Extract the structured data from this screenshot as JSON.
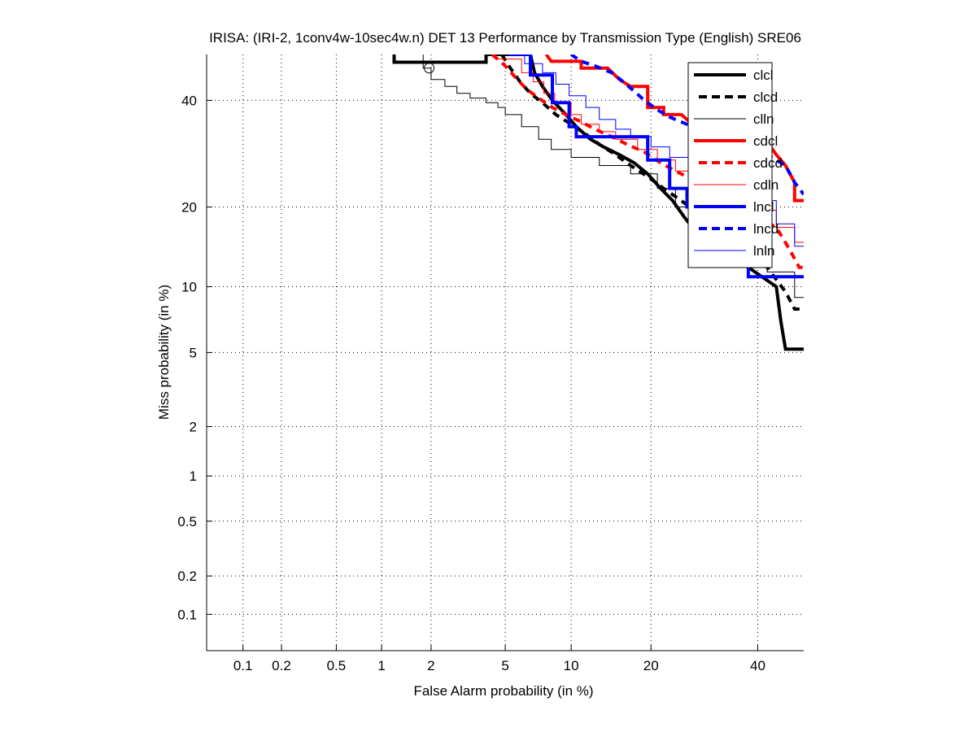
{
  "chart_data": {
    "type": "line",
    "subtype": "DET curve (normal deviate scale)",
    "title": "IRISA: (IRI-2, 1conv4w-10sec4w.n) DET 13 Performance by Transmission Type (English) SRE06",
    "xlabel": "False Alarm probability (in %)",
    "ylabel": "Miss probability (in %)",
    "x_scale": "probit",
    "y_scale": "probit",
    "xlim": [
      0.05,
      50
    ],
    "ylim": [
      0.05,
      50
    ],
    "x_ticks": [
      0.1,
      0.2,
      0.5,
      1,
      2,
      5,
      10,
      20,
      40
    ],
    "x_tick_labels": [
      "0.1",
      "0.2",
      "0.5",
      "1",
      "2",
      "5",
      "10",
      "20",
      "40"
    ],
    "y_ticks": [
      0.1,
      0.2,
      0.5,
      1,
      2,
      5,
      10,
      20,
      40
    ],
    "y_tick_labels": [
      "0.1",
      "0.2",
      "0.5",
      "1",
      "2",
      "5",
      "10",
      "20",
      "40"
    ],
    "grid": true,
    "legend_position": "top-right",
    "series": [
      {
        "name": "clcl",
        "color": "#000000",
        "style": "solid",
        "weight": "thick",
        "points": [
          [
            1.2,
            50
          ],
          [
            1.2,
            48.3
          ],
          [
            4.0,
            48.3
          ],
          [
            4.0,
            50
          ],
          [
            6.6,
            50
          ],
          [
            6.9,
            46
          ],
          [
            7.5,
            43
          ],
          [
            8.3,
            40
          ],
          [
            9.5,
            37
          ],
          [
            10.5,
            34.5
          ],
          [
            12,
            32
          ],
          [
            13.5,
            30.5
          ],
          [
            15.5,
            29
          ],
          [
            17.5,
            27.5
          ],
          [
            19.5,
            25.5
          ],
          [
            21.5,
            23
          ],
          [
            23.5,
            21
          ],
          [
            25.5,
            18.5
          ],
          [
            28,
            16
          ],
          [
            33,
            13.5
          ],
          [
            38,
            12
          ],
          [
            44,
            10
          ],
          [
            45,
            7
          ],
          [
            46,
            5.2
          ],
          [
            50,
            5.2
          ]
        ]
      },
      {
        "name": "clcd",
        "color": "#000000",
        "style": "dashed",
        "weight": "thick",
        "points": [
          [
            4.8,
            50
          ],
          [
            5.3,
            47
          ],
          [
            5.9,
            44
          ],
          [
            6.6,
            41.5
          ],
          [
            7.5,
            39.5
          ],
          [
            8.6,
            37
          ],
          [
            10,
            35
          ],
          [
            11.5,
            33
          ],
          [
            13,
            31
          ],
          [
            15,
            29
          ],
          [
            17,
            27
          ],
          [
            19.5,
            25
          ],
          [
            22,
            23
          ],
          [
            25,
            21
          ],
          [
            28,
            19
          ],
          [
            32,
            16.5
          ],
          [
            37,
            14.5
          ],
          [
            42,
            12
          ],
          [
            46,
            9.5
          ],
          [
            48,
            8
          ],
          [
            50,
            8
          ]
        ]
      },
      {
        "name": "clln",
        "color": "#000000",
        "style": "solid",
        "weight": "thin",
        "points": [
          [
            1.8,
            50
          ],
          [
            1.8,
            47
          ],
          [
            2.0,
            47
          ],
          [
            2.0,
            44.5
          ],
          [
            2.4,
            44.5
          ],
          [
            2.4,
            43
          ],
          [
            2.8,
            43
          ],
          [
            2.8,
            41.5
          ],
          [
            3.3,
            41.5
          ],
          [
            3.3,
            40.5
          ],
          [
            4.0,
            40.5
          ],
          [
            4.0,
            39.5
          ],
          [
            4.6,
            39.5
          ],
          [
            4.6,
            38.5
          ],
          [
            5.0,
            38.5
          ],
          [
            5.0,
            37
          ],
          [
            6.0,
            37
          ],
          [
            6.0,
            34.5
          ],
          [
            7.2,
            34.5
          ],
          [
            7.2,
            32
          ],
          [
            8.2,
            32
          ],
          [
            8.2,
            30
          ],
          [
            10,
            30
          ],
          [
            10,
            28.5
          ],
          [
            13,
            28.5
          ],
          [
            13,
            27
          ],
          [
            17,
            27
          ],
          [
            17,
            25.5
          ],
          [
            21,
            25.5
          ],
          [
            21,
            23
          ],
          [
            24,
            23
          ],
          [
            24,
            20
          ],
          [
            28,
            20
          ],
          [
            28,
            17
          ],
          [
            35,
            17
          ],
          [
            35,
            14
          ],
          [
            42,
            14
          ],
          [
            42,
            11.5
          ],
          [
            48,
            11.5
          ],
          [
            48,
            9
          ],
          [
            50,
            9
          ]
        ]
      },
      {
        "name": "cdcl",
        "color": "#ff0000",
        "style": "solid",
        "weight": "thick",
        "points": [
          [
            7.8,
            50
          ],
          [
            8.2,
            48.5
          ],
          [
            11,
            48.5
          ],
          [
            11,
            47
          ],
          [
            14,
            47
          ],
          [
            15.5,
            44.5
          ],
          [
            17,
            43
          ],
          [
            19.5,
            43
          ],
          [
            19.5,
            38.5
          ],
          [
            22,
            38.5
          ],
          [
            22,
            37
          ],
          [
            25,
            37
          ],
          [
            27,
            35
          ],
          [
            32,
            35
          ],
          [
            34,
            33.5
          ],
          [
            38,
            33.5
          ],
          [
            42,
            31.5
          ],
          [
            44,
            29
          ],
          [
            46,
            27
          ],
          [
            48,
            24
          ],
          [
            48,
            21
          ],
          [
            50,
            21
          ]
        ]
      },
      {
        "name": "cdcd",
        "color": "#ff0000",
        "style": "dashed",
        "weight": "thick",
        "points": [
          [
            4.3,
            50
          ],
          [
            5.0,
            47.5
          ],
          [
            5.6,
            45
          ],
          [
            6.3,
            42.5
          ],
          [
            7.2,
            40.5
          ],
          [
            8.3,
            38.5
          ],
          [
            9.5,
            37
          ],
          [
            11,
            35.5
          ],
          [
            12.5,
            34
          ],
          [
            14.5,
            32.5
          ],
          [
            16.5,
            31
          ],
          [
            19,
            29.5
          ],
          [
            21.5,
            27.5
          ],
          [
            24,
            26
          ],
          [
            27,
            24.5
          ],
          [
            31,
            22.5
          ],
          [
            35,
            20
          ],
          [
            40,
            18.5
          ],
          [
            44,
            17
          ],
          [
            47,
            14
          ],
          [
            49,
            12
          ],
          [
            50,
            12
          ]
        ]
      },
      {
        "name": "cdln",
        "color": "#ff0000",
        "style": "solid",
        "weight": "thin",
        "points": [
          [
            4.5,
            50
          ],
          [
            4.5,
            49
          ],
          [
            6.0,
            49
          ],
          [
            6.0,
            46
          ],
          [
            6.8,
            46
          ],
          [
            6.8,
            44
          ],
          [
            7.6,
            44
          ],
          [
            7.6,
            41.5
          ],
          [
            8.5,
            41.5
          ],
          [
            8.5,
            39.5
          ],
          [
            10,
            39.5
          ],
          [
            10,
            37
          ],
          [
            11,
            37
          ],
          [
            11,
            35
          ],
          [
            13,
            35
          ],
          [
            13,
            33.5
          ],
          [
            15,
            33.5
          ],
          [
            15,
            32
          ],
          [
            18,
            32
          ],
          [
            18,
            30
          ],
          [
            21,
            30
          ],
          [
            21,
            28
          ],
          [
            24,
            28
          ],
          [
            24,
            26
          ],
          [
            28,
            26
          ],
          [
            28,
            24
          ],
          [
            32,
            24
          ],
          [
            32,
            22
          ],
          [
            38,
            22
          ],
          [
            38,
            19.5
          ],
          [
            44,
            19.5
          ],
          [
            44,
            17
          ],
          [
            48,
            17
          ],
          [
            48,
            15
          ],
          [
            50,
            15
          ]
        ]
      },
      {
        "name": "lncl",
        "color": "#0000ff",
        "style": "solid",
        "weight": "thick",
        "points": [
          [
            5.2,
            50
          ],
          [
            6.6,
            50
          ],
          [
            6.6,
            45.5
          ],
          [
            8.3,
            45.5
          ],
          [
            8.3,
            39.5
          ],
          [
            9.8,
            39.5
          ],
          [
            9.8,
            34.5
          ],
          [
            10.5,
            34.5
          ],
          [
            10.5,
            32.5
          ],
          [
            19.5,
            32.5
          ],
          [
            19.5,
            28
          ],
          [
            23,
            28
          ],
          [
            23,
            23
          ],
          [
            26,
            23
          ],
          [
            26,
            20
          ],
          [
            38,
            20
          ],
          [
            38,
            11
          ],
          [
            50,
            11
          ]
        ]
      },
      {
        "name": "lncd",
        "color": "#0000ff",
        "style": "dashed",
        "weight": "thick",
        "points": [
          [
            10,
            50
          ],
          [
            11,
            48.5
          ],
          [
            12.5,
            47.5
          ],
          [
            14.5,
            46
          ],
          [
            16,
            44
          ],
          [
            17.5,
            42
          ],
          [
            19,
            40
          ],
          [
            21,
            38
          ],
          [
            23,
            36.5
          ],
          [
            26,
            35
          ],
          [
            30,
            33
          ],
          [
            34,
            31.5
          ],
          [
            38,
            30
          ],
          [
            42,
            29
          ],
          [
            46,
            27
          ],
          [
            48,
            24
          ],
          [
            50,
            22
          ]
        ]
      },
      {
        "name": "lnln",
        "color": "#0000ff",
        "style": "solid",
        "weight": "thin",
        "points": [
          [
            6.2,
            50
          ],
          [
            6.2,
            48
          ],
          [
            7.5,
            48
          ],
          [
            7.5,
            46
          ],
          [
            8.6,
            46
          ],
          [
            8.6,
            43.5
          ],
          [
            9.8,
            43.5
          ],
          [
            9.8,
            41
          ],
          [
            11.5,
            41
          ],
          [
            11.5,
            38.5
          ],
          [
            13,
            38.5
          ],
          [
            13,
            36
          ],
          [
            15,
            36
          ],
          [
            15,
            34
          ],
          [
            17,
            34
          ],
          [
            17,
            32.5
          ],
          [
            20,
            32.5
          ],
          [
            20,
            30.5
          ],
          [
            23,
            30.5
          ],
          [
            23,
            28.5
          ],
          [
            27,
            28.5
          ],
          [
            27,
            26
          ],
          [
            32,
            26
          ],
          [
            32,
            23.5
          ],
          [
            38,
            23.5
          ],
          [
            38,
            21
          ],
          [
            44,
            21
          ],
          [
            44,
            17.5
          ],
          [
            48,
            17.5
          ],
          [
            48,
            14.5
          ],
          [
            50,
            14.5
          ]
        ]
      }
    ],
    "annotations": [
      {
        "type": "circle-marker",
        "label": "operating point",
        "x": 1.95,
        "y": 47
      }
    ]
  }
}
